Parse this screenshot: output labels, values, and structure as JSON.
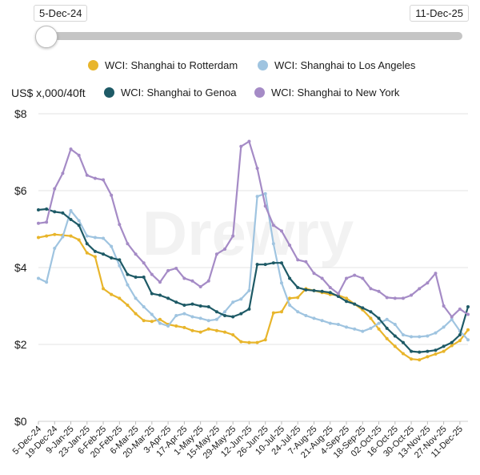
{
  "range": {
    "start_label": "5-Dec-24",
    "end_label": "11-Dec-25"
  },
  "unit_label": "US$ x,000/40ft",
  "watermark": "Drewry",
  "colors": {
    "rotterdam": "#E8B52B",
    "los_angeles": "#9FC4E0",
    "genoa": "#1E5A66",
    "new_york": "#A58BC6",
    "grid": "#e3e3e3"
  },
  "chart_data": {
    "type": "line",
    "ylim": [
      0,
      8
    ],
    "y_ticks": [
      0,
      2,
      4,
      6,
      8
    ],
    "y_tick_labels": [
      "$0",
      "$2",
      "$4",
      "$6",
      "$8"
    ],
    "x_tick_labels": [
      "5-Dec-24",
      "19-Dec-24",
      "9-Jan-25",
      "23-Jan-25",
      "6-Feb-25",
      "20-Feb-25",
      "6-Mar-25",
      "20-Mar-25",
      "3-Apr-25",
      "17-Apr-25",
      "1-May-25",
      "15-May-25",
      "29-May-25",
      "12-Jun-25",
      "26-Jun-25",
      "10-Jul-25",
      "24-Jul-25",
      "7-Aug-25",
      "21-Aug-25",
      "4-Sep-25",
      "18-Sep-25",
      "02-Oct-25",
      "16-Oct-25",
      "30-Oct-25",
      "13-Nov-25",
      "27-Nov-25",
      "11-Dec-25"
    ],
    "weeks": 54,
    "series": [
      {
        "name": "WCI: Shanghai to Rotterdam",
        "color_key": "rotterdam",
        "values": [
          4.78,
          4.82,
          4.86,
          4.84,
          4.82,
          4.72,
          4.38,
          4.28,
          3.45,
          3.3,
          3.2,
          3.02,
          2.8,
          2.62,
          2.6,
          2.65,
          2.52,
          2.48,
          2.44,
          2.36,
          2.32,
          2.4,
          2.36,
          2.32,
          2.25,
          2.07,
          2.05,
          2.05,
          2.12,
          2.82,
          2.85,
          3.2,
          3.22,
          3.45,
          3.4,
          3.35,
          3.3,
          3.28,
          3.2,
          3.05,
          2.9,
          2.68,
          2.4,
          2.15,
          1.95,
          1.76,
          1.62,
          1.6,
          1.68,
          1.75,
          1.82,
          1.97,
          2.1,
          2.38
        ]
      },
      {
        "name": "WCI: Shanghai to Los Angeles",
        "color_key": "los_angeles",
        "values": [
          3.72,
          3.62,
          4.5,
          4.8,
          5.48,
          5.22,
          4.82,
          4.78,
          4.76,
          4.55,
          4.05,
          3.55,
          3.2,
          2.98,
          2.78,
          2.55,
          2.48,
          2.75,
          2.8,
          2.72,
          2.68,
          2.62,
          2.65,
          2.85,
          3.1,
          3.18,
          3.4,
          5.85,
          5.92,
          4.62,
          3.6,
          3.02,
          2.85,
          2.75,
          2.68,
          2.62,
          2.55,
          2.52,
          2.45,
          2.4,
          2.34,
          2.42,
          2.55,
          2.65,
          2.52,
          2.25,
          2.2,
          2.2,
          2.22,
          2.3,
          2.45,
          2.65,
          2.35,
          2.12
        ]
      },
      {
        "name": "WCI: Shanghai to Genoa",
        "color_key": "genoa",
        "values": [
          5.5,
          5.52,
          5.45,
          5.42,
          5.25,
          5.1,
          4.62,
          4.42,
          4.35,
          4.25,
          4.2,
          3.82,
          3.75,
          3.75,
          3.32,
          3.28,
          3.2,
          3.1,
          3.02,
          3.05,
          3.0,
          2.98,
          2.85,
          2.75,
          2.72,
          2.8,
          2.92,
          4.08,
          4.08,
          4.12,
          4.12,
          3.72,
          3.48,
          3.42,
          3.4,
          3.38,
          3.35,
          3.25,
          3.12,
          3.05,
          2.95,
          2.85,
          2.68,
          2.42,
          2.22,
          2.05,
          1.82,
          1.8,
          1.82,
          1.85,
          1.95,
          2.05,
          2.25,
          2.98
        ]
      },
      {
        "name": "WCI: Shanghai to New York",
        "color_key": "new_york",
        "values": [
          5.15,
          5.18,
          6.05,
          6.45,
          7.08,
          6.92,
          6.4,
          6.32,
          6.28,
          5.88,
          5.12,
          4.62,
          4.35,
          4.12,
          3.82,
          3.62,
          3.92,
          3.98,
          3.72,
          3.65,
          3.5,
          3.65,
          4.35,
          4.48,
          4.82,
          7.15,
          7.28,
          6.58,
          5.6,
          5.1,
          4.95,
          4.58,
          4.2,
          4.15,
          3.85,
          3.72,
          3.48,
          3.32,
          3.72,
          3.8,
          3.72,
          3.45,
          3.38,
          3.22,
          3.2,
          3.2,
          3.28,
          3.45,
          3.6,
          3.85,
          3.0,
          2.72,
          2.92,
          2.78
        ]
      }
    ]
  }
}
